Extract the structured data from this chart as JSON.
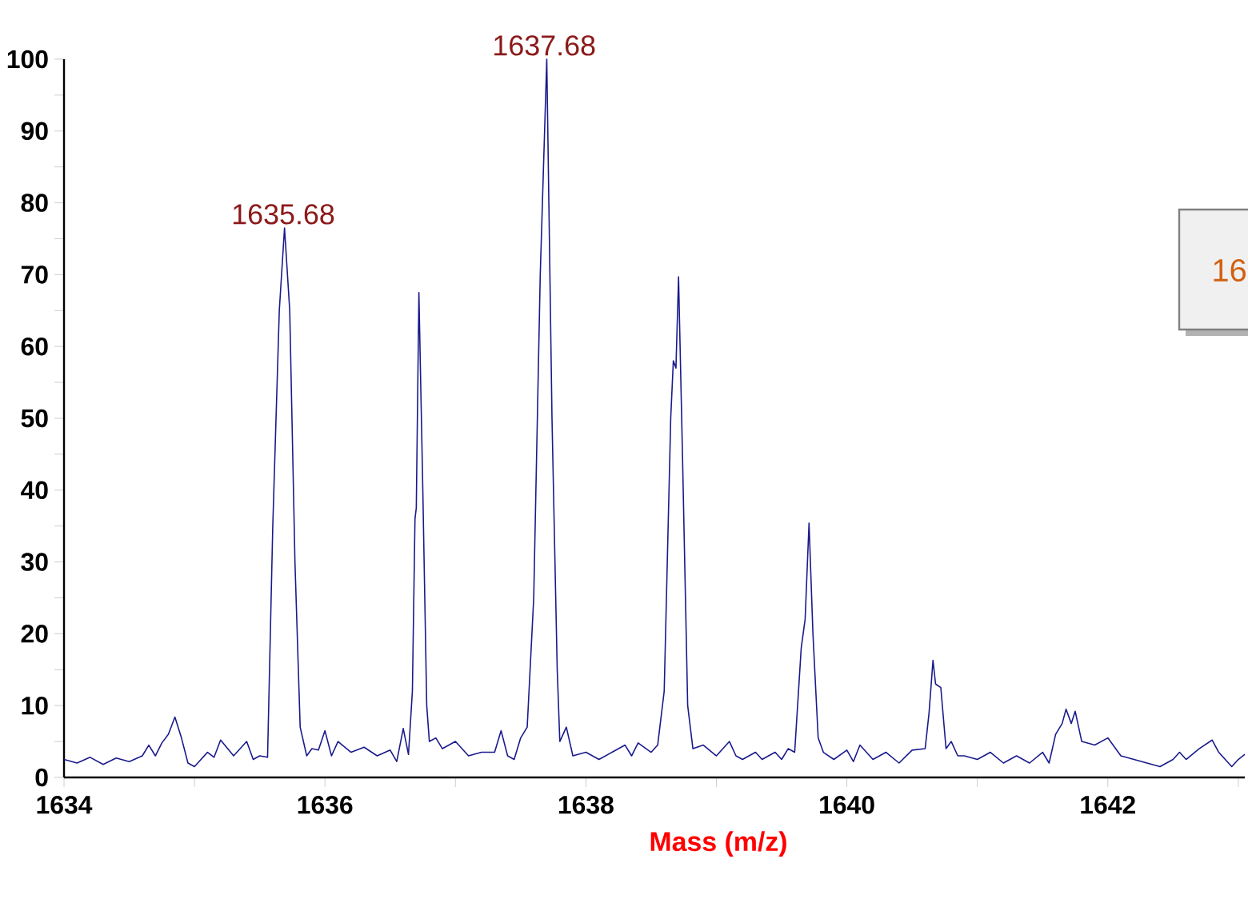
{
  "chart_data": {
    "type": "line",
    "xlabel": "Mass (m/z)",
    "xlim": [
      1634,
      1643.05
    ],
    "ylim": [
      0,
      100
    ],
    "xticks": [
      1634,
      {
        "value": 1635,
        "label": null
      },
      1636,
      {
        "value": 1637,
        "label": null
      },
      1638,
      {
        "value": 1639,
        "label": null
      },
      1640,
      {
        "value": 1641,
        "label": null
      },
      1642,
      {
        "value": 1643,
        "label": null
      }
    ],
    "yticks": [
      0,
      {
        "value": 5,
        "label": null
      },
      10,
      {
        "value": 15,
        "label": null
      },
      20,
      {
        "value": 25,
        "label": null
      },
      30,
      {
        "value": 35,
        "label": null
      },
      40,
      {
        "value": 45,
        "label": null
      },
      50,
      {
        "value": 55,
        "label": null
      },
      60,
      {
        "value": 65,
        "label": null
      },
      70,
      {
        "value": 75,
        "label": null
      },
      80,
      {
        "value": 85,
        "label": null
      },
      90,
      {
        "value": 95,
        "label": null
      },
      100
    ],
    "grid": false,
    "marker": "none",
    "line_style": "solid",
    "series": [
      {
        "color": "#1a1a8c",
        "x": [
          1634.0,
          1634.1,
          1634.2,
          1634.3,
          1634.4,
          1634.5,
          1634.6,
          1634.65,
          1634.7,
          1634.75,
          1634.8,
          1634.85,
          1634.9,
          1634.95,
          1635.0,
          1635.1,
          1635.15,
          1635.2,
          1635.3,
          1635.4,
          1635.45,
          1635.5,
          1635.56,
          1635.6,
          1635.65,
          1635.69,
          1635.73,
          1635.77,
          1635.81,
          1635.86,
          1635.9,
          1635.95,
          1636.0,
          1636.05,
          1636.1,
          1636.2,
          1636.3,
          1636.4,
          1636.5,
          1636.55,
          1636.6,
          1636.64,
          1636.67,
          1636.69,
          1636.7,
          1636.72,
          1636.75,
          1636.78,
          1636.8,
          1636.85,
          1636.9,
          1637.0,
          1637.1,
          1637.2,
          1637.3,
          1637.35,
          1637.4,
          1637.45,
          1637.5,
          1637.55,
          1637.6,
          1637.65,
          1637.7,
          1637.74,
          1637.78,
          1637.8,
          1637.85,
          1637.9,
          1638.0,
          1638.1,
          1638.2,
          1638.3,
          1638.35,
          1638.4,
          1638.5,
          1638.55,
          1638.6,
          1638.65,
          1638.67,
          1638.69,
          1638.71,
          1638.74,
          1638.78,
          1638.82,
          1638.9,
          1639.0,
          1639.1,
          1639.15,
          1639.2,
          1639.3,
          1639.35,
          1639.45,
          1639.5,
          1639.55,
          1639.6,
          1639.65,
          1639.68,
          1639.71,
          1639.74,
          1639.78,
          1639.82,
          1639.9,
          1640.0,
          1640.05,
          1640.1,
          1640.2,
          1640.3,
          1640.4,
          1640.5,
          1640.6,
          1640.63,
          1640.66,
          1640.68,
          1640.72,
          1640.76,
          1640.8,
          1640.85,
          1640.9,
          1641.0,
          1641.1,
          1641.2,
          1641.3,
          1641.4,
          1641.5,
          1641.55,
          1641.6,
          1641.65,
          1641.68,
          1641.72,
          1641.75,
          1641.8,
          1641.9,
          1642.0,
          1642.1,
          1642.2,
          1642.3,
          1642.4,
          1642.5,
          1642.55,
          1642.6,
          1642.7,
          1642.8,
          1642.85,
          1642.9,
          1642.95,
          1643.0,
          1643.05
        ],
        "values": [
          2.5,
          2.0,
          2.8,
          1.8,
          2.7,
          2.2,
          3.0,
          4.5,
          3.0,
          4.8,
          6.0,
          8.4,
          5.5,
          2.0,
          1.5,
          3.5,
          2.8,
          5.2,
          3.0,
          5.0,
          2.5,
          3.0,
          2.8,
          35,
          65,
          76.5,
          65,
          30,
          7,
          3,
          4,
          3.8,
          6.5,
          3,
          5,
          3.5,
          4.2,
          3.0,
          3.8,
          2.2,
          6.8,
          3.2,
          12,
          36,
          37.5,
          67.5,
          40,
          10,
          5,
          5.5,
          4,
          5,
          3,
          3.5,
          3.5,
          6.5,
          3,
          2.5,
          5.5,
          7,
          25,
          70,
          100,
          50,
          15,
          5,
          7,
          3,
          3.5,
          2.5,
          3.5,
          4.5,
          3,
          4.8,
          3.5,
          4.5,
          12,
          50,
          58,
          57,
          69.7,
          45,
          10,
          4,
          4.5,
          3,
          5,
          3,
          2.5,
          3.5,
          2.5,
          3.5,
          2.5,
          4.0,
          3.5,
          18,
          22,
          35.4,
          20,
          5.5,
          3.5,
          2.5,
          3.8,
          2.2,
          4.5,
          2.5,
          3.5,
          2.0,
          3.8,
          4.0,
          9,
          16.3,
          13,
          12.5,
          4,
          5,
          3,
          3,
          2.5,
          3.5,
          2.0,
          3.0,
          2.0,
          3.5,
          2.0,
          6.0,
          7.5,
          9.5,
          7.5,
          9.2,
          5,
          4.5,
          5.5,
          3,
          2.5,
          2,
          1.5,
          2.5,
          3.5,
          2.5,
          4,
          5.2,
          3.5,
          2.5,
          1.5,
          2.5,
          3.2
        ]
      }
    ],
    "annotations": [
      {
        "text": "1635.68",
        "x": 1635.68,
        "y": 76.5
      },
      {
        "text": "1637.68",
        "x": 1637.68,
        "y": 100
      },
      "16"
    ]
  }
}
